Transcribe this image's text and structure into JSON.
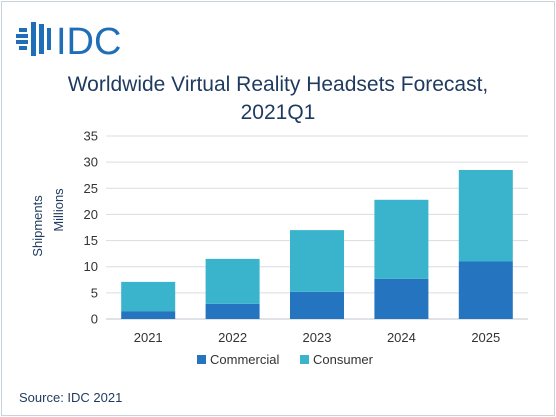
{
  "logo": {
    "text": "IDC",
    "icon": "idc-globe-icon",
    "color": "#1f6fb8"
  },
  "title_line1": "Worldwide Virtual Reality Headsets Forecast,",
  "title_line2": "2021Q1",
  "source": "Source: IDC 2021",
  "chart_data": {
    "type": "bar",
    "stacked": true,
    "categories": [
      "2021",
      "2022",
      "2023",
      "2024",
      "2025"
    ],
    "series": [
      {
        "name": "Commercial",
        "color": "#2574c0",
        "values": [
          1.5,
          2.9,
          5.2,
          7.7,
          11.0
        ]
      },
      {
        "name": "Consumer",
        "color": "#3ab3cc",
        "values": [
          5.6,
          8.6,
          11.8,
          15.1,
          17.5
        ]
      }
    ],
    "ylabel_line1": "Shipments",
    "ylabel_line2": "Millions",
    "ylim": [
      0,
      35
    ],
    "yticks": [
      0,
      5,
      10,
      15,
      20,
      25,
      30,
      35
    ],
    "grid": true,
    "legend_position": "bottom-center"
  }
}
